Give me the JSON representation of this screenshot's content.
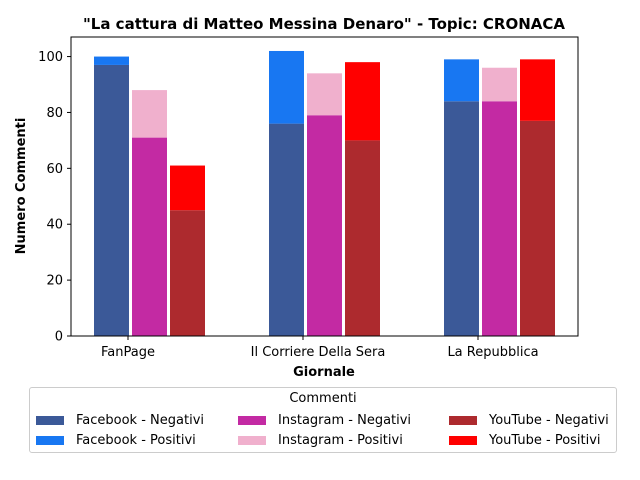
{
  "chart_data": {
    "type": "bar",
    "title": "\"La cattura di Matteo Messina Denaro\" - Topic: CRONACA",
    "xlabel": "Giornale",
    "ylabel": "Numero Commenti",
    "categories": [
      "FanPage",
      "Il Corriere Della Sera",
      "La Repubblica"
    ],
    "ylim": [
      0,
      107
    ],
    "yticks": [
      0,
      20,
      40,
      60,
      80,
      100
    ],
    "stacked_pairs": true,
    "series": [
      {
        "name": "Facebook - Negativi",
        "platform": "Facebook",
        "values": [
          97,
          76,
          84
        ],
        "color": "#3b5998"
      },
      {
        "name": "Facebook - Positivi",
        "platform": "Facebook",
        "values": [
          3,
          26,
          15
        ],
        "color": "#1877f2"
      },
      {
        "name": "Instagram - Negativi",
        "platform": "Instagram",
        "values": [
          71,
          79,
          84
        ],
        "color": "#c32aa3"
      },
      {
        "name": "Instagram - Positivi",
        "platform": "Instagram",
        "values": [
          17,
          15,
          12
        ],
        "color": "#f0b0cd"
      },
      {
        "name": "YouTube - Negativi",
        "platform": "YouTube",
        "values": [
          45,
          70,
          77
        ],
        "color": "#ad2a2e"
      },
      {
        "name": "YouTube - Positivi",
        "platform": "YouTube",
        "values": [
          16,
          28,
          22
        ],
        "color": "#ff0000"
      }
    ],
    "legend": {
      "title": "Commenti",
      "placement": "bottom-center",
      "columns": 3
    },
    "grid": false
  }
}
